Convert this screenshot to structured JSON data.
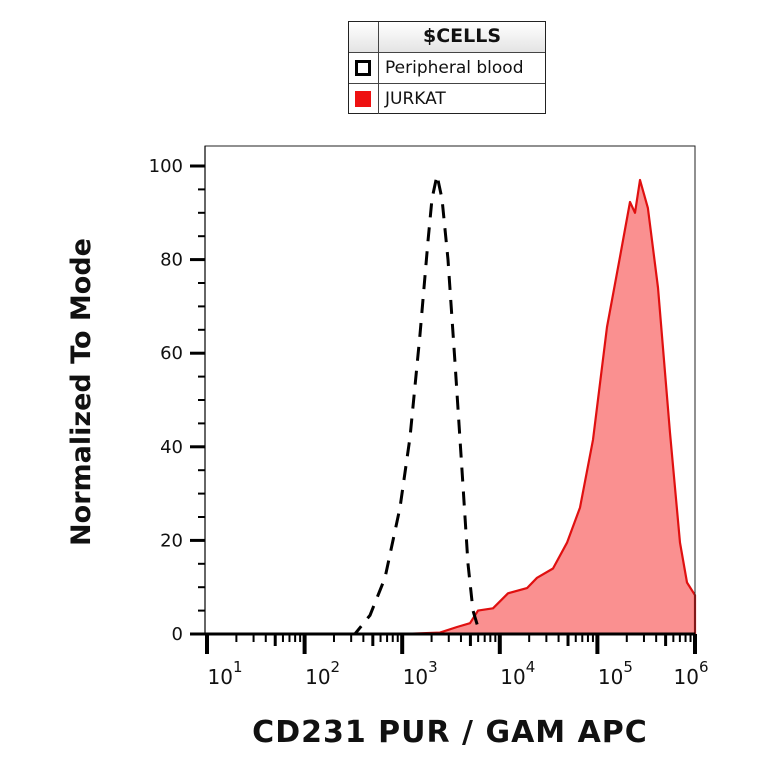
{
  "chart_data": {
    "type": "area",
    "xlabel": "CD231 PUR / GAM APC",
    "ylabel": "Normalized To Mode",
    "x_scale": "log",
    "xlim": [
      10,
      1000000
    ],
    "ylim": [
      0,
      100
    ],
    "x_ticks": [
      {
        "base": "10",
        "exp": "1"
      },
      {
        "base": "10",
        "exp": "2"
      },
      {
        "base": "10",
        "exp": "3"
      },
      {
        "base": "10",
        "exp": "4"
      },
      {
        "base": "10",
        "exp": "5"
      },
      {
        "base": "10",
        "exp": "6"
      }
    ],
    "y_ticks": [
      "0",
      "20",
      "40",
      "60",
      "80",
      "100"
    ],
    "y_tick_values": [
      0,
      20,
      40,
      60,
      80,
      100
    ],
    "grid": false,
    "legend": {
      "title": "$CELLS",
      "placement": "top",
      "entries": [
        {
          "name": "Peripheral blood",
          "style": "dashed-outline",
          "color": "#000000"
        },
        {
          "name": "JURKAT",
          "style": "filled",
          "color": "#ee1111"
        }
      ]
    },
    "series": [
      {
        "name": "Peripheral blood",
        "color": "#000000",
        "fill": "none",
        "x": [
          10,
          100,
          328,
          468,
          667,
          949,
          1202,
          1521,
          1836,
          2018,
          2274,
          2560,
          2946,
          3474,
          4100,
          4725,
          5310,
          6266,
          100000,
          1000000
        ],
        "y": [
          0,
          0,
          0,
          4,
          12,
          27,
          42,
          64,
          84,
          93,
          98,
          93,
          80,
          58,
          35,
          15,
          5,
          0,
          0,
          0
        ]
      },
      {
        "name": "JURKAT",
        "color": "#e01010",
        "fill": "#fa9090",
        "x": [
          10,
          1000,
          2440,
          3640,
          4950,
          5980,
          8520,
          12130,
          19000,
          24050,
          35080,
          48840,
          66400,
          90200,
          125400,
          170600,
          216000,
          242800,
          273000,
          329500,
          417600,
          554600,
          701600,
          827600,
          1000000
        ],
        "y": [
          0,
          0,
          0.3,
          1.5,
          2.3,
          5,
          5.5,
          8.7,
          9.8,
          12,
          14,
          19.5,
          27,
          41.5,
          65.6,
          80.6,
          92.3,
          90,
          97,
          91,
          74,
          43,
          19.5,
          11,
          8.3
        ]
      }
    ]
  }
}
